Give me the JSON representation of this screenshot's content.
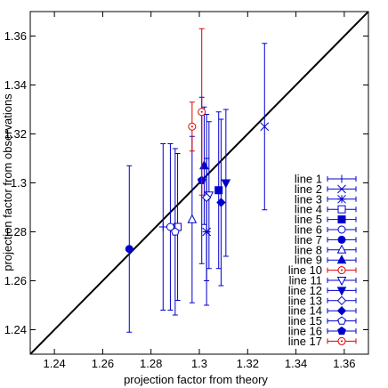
{
  "chart_data": {
    "type": "scatter",
    "title": "",
    "xlabel": "projection factor from theory",
    "ylabel": "projection factor from observations",
    "xlim": [
      1.23,
      1.37
    ],
    "ylim": [
      1.23,
      1.37
    ],
    "xticks": [
      "1.24",
      "1.26",
      "1.28",
      "1.3",
      "1.32",
      "1.34",
      "1.36"
    ],
    "yticks": [
      "1.24",
      "1.26",
      "1.28",
      "1.3",
      "1.32",
      "1.34",
      "1.36"
    ],
    "grid": false,
    "legend_position": "bottom-right",
    "reference_line": "y = x",
    "colors": {
      "blue": "#0000cc",
      "red": "#dd0000",
      "axis": "#000000"
    },
    "series": [
      {
        "name": "line 1",
        "marker": "plus",
        "color": "#0000cc",
        "x": 1.285,
        "y": 1.282,
        "yerr": 0.034
      },
      {
        "name": "line 2",
        "marker": "cross",
        "color": "#0000cc",
        "x": 1.327,
        "y": 1.323,
        "yerr": 0.034
      },
      {
        "name": "line 3",
        "marker": "star",
        "color": "#0000cc",
        "x": 1.303,
        "y": 1.28,
        "yerr": 0.03
      },
      {
        "name": "line 4",
        "marker": "square-open",
        "color": "#0000cc",
        "x": 1.291,
        "y": 1.282,
        "yerr": 0.03
      },
      {
        "name": "line 5",
        "marker": "square-filled",
        "color": "#0000cc",
        "x": 1.308,
        "y": 1.297,
        "yerr": 0.032
      },
      {
        "name": "line 6",
        "marker": "circle-open",
        "color": "#0000cc",
        "x": 1.288,
        "y": 1.282,
        "yerr": 0.034
      },
      {
        "name": "line 7",
        "marker": "circle-filled",
        "color": "#0000cc",
        "x": 1.271,
        "y": 1.273,
        "yerr": 0.034
      },
      {
        "name": "line 8",
        "marker": "triangle-open",
        "color": "#0000cc",
        "x": 1.297,
        "y": 1.285,
        "yerr": 0.034
      },
      {
        "name": "line 9",
        "marker": "triangle-filled",
        "color": "#0000cc",
        "x": 1.302,
        "y": 1.307,
        "yerr": 0.024
      },
      {
        "name": "line 10",
        "marker": "circle-dot",
        "color": "#dd0000",
        "x": 1.297,
        "y": 1.323,
        "yerr": 0.01
      },
      {
        "name": "line 11",
        "marker": "tri-down-open",
        "color": "#0000cc",
        "x": 1.304,
        "y": 1.295,
        "yerr": 0.03
      },
      {
        "name": "line 12",
        "marker": "tri-down-filled",
        "color": "#0000cc",
        "x": 1.311,
        "y": 1.3,
        "yerr": 0.03
      },
      {
        "name": "line 13",
        "marker": "diamond-open",
        "color": "#0000cc",
        "x": 1.303,
        "y": 1.294,
        "yerr": 0.034
      },
      {
        "name": "line 14",
        "marker": "diamond-filled",
        "color": "#0000cc",
        "x": 1.309,
        "y": 1.292,
        "yerr": 0.034
      },
      {
        "name": "line 15",
        "marker": "pentagon-open",
        "color": "#0000cc",
        "x": 1.29,
        "y": 1.28,
        "yerr": 0.034
      },
      {
        "name": "line 16",
        "marker": "pentagon-filled",
        "color": "#0000cc",
        "x": 1.301,
        "y": 1.301,
        "yerr": 0.034
      },
      {
        "name": "line 17",
        "marker": "circle-dot",
        "color": "#dd0000",
        "x": 1.301,
        "y": 1.329,
        "yerr": 0.034
      }
    ]
  }
}
